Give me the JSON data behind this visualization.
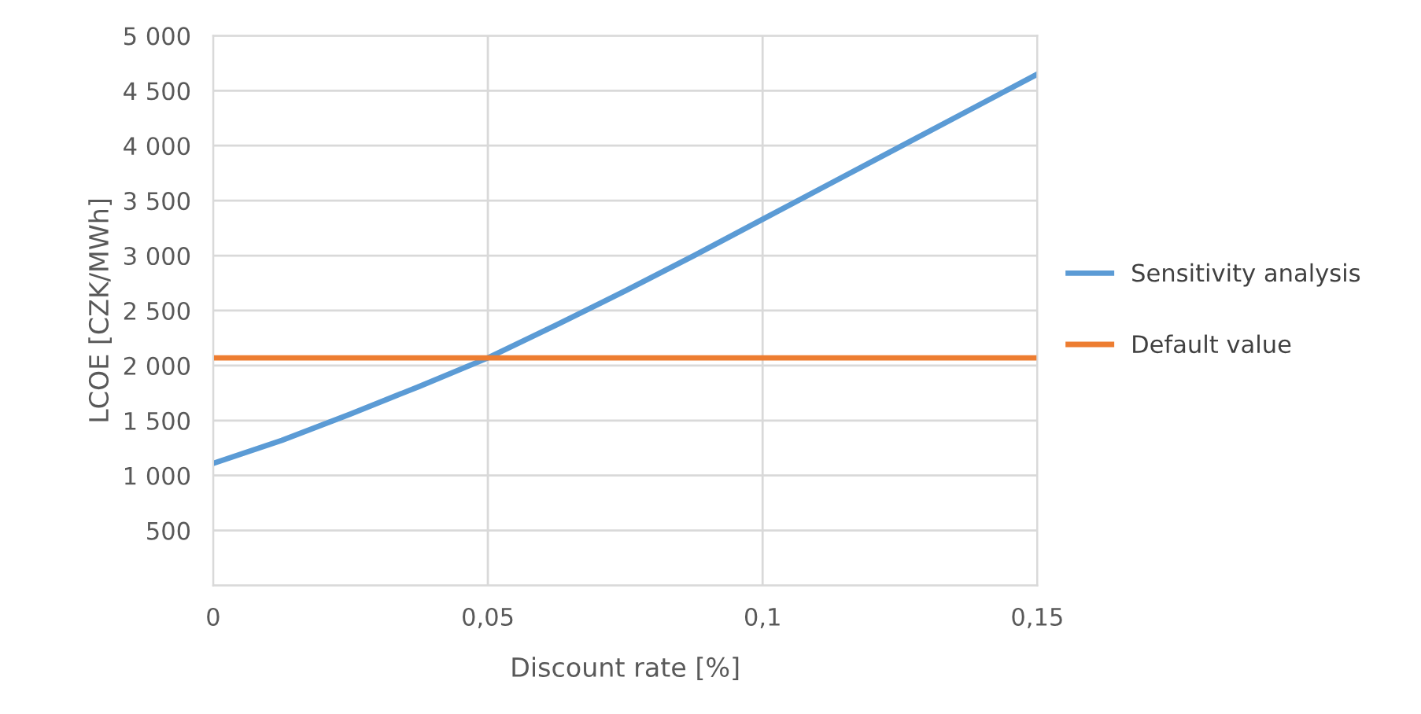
{
  "chart_data": {
    "type": "line",
    "xlabel": "Discount rate [%]",
    "ylabel": "LCOE [CZK/MWh]",
    "x": [
      0,
      0.0125,
      0.025,
      0.0375,
      0.05,
      0.0625,
      0.075,
      0.0875,
      0.1,
      0.1125,
      0.125,
      0.1375,
      0.15
    ],
    "series": [
      {
        "name": "Sensitivity analysis",
        "color": "#5b9bd5",
        "values": [
          1110,
          1320,
          1560,
          1810,
          2070,
          2370,
          2680,
          3000,
          3330,
          3660,
          3990,
          4320,
          4650
        ]
      },
      {
        "name": "Default value",
        "color": "#ed7d31",
        "values": [
          2070,
          2070,
          2070,
          2070,
          2070,
          2070,
          2070,
          2070,
          2070,
          2070,
          2070,
          2070,
          2070
        ]
      }
    ],
    "xlim": [
      0,
      0.15
    ],
    "xticks": [
      {
        "value": 0,
        "label": "0"
      },
      {
        "value": 0.05,
        "label": "0,05"
      },
      {
        "value": 0.1,
        "label": "0,1"
      },
      {
        "value": 0.15,
        "label": "0,15"
      }
    ],
    "ylim": [
      0,
      5000
    ],
    "yticks": [
      {
        "value": 0,
        "label": null
      },
      {
        "value": 500,
        "label": "500"
      },
      {
        "value": 1000,
        "label": "1 000"
      },
      {
        "value": 1500,
        "label": "1 500"
      },
      {
        "value": 2000,
        "label": "2 000"
      },
      {
        "value": 2500,
        "label": "2 500"
      },
      {
        "value": 3000,
        "label": "3 000"
      },
      {
        "value": 3500,
        "label": "3 500"
      },
      {
        "value": 4000,
        "label": "4 000"
      },
      {
        "value": 4500,
        "label": "4 500"
      },
      {
        "value": 5000,
        "label": "5 000"
      }
    ],
    "grid": true,
    "legend": "right",
    "marker": "none",
    "line_style": "solid"
  }
}
